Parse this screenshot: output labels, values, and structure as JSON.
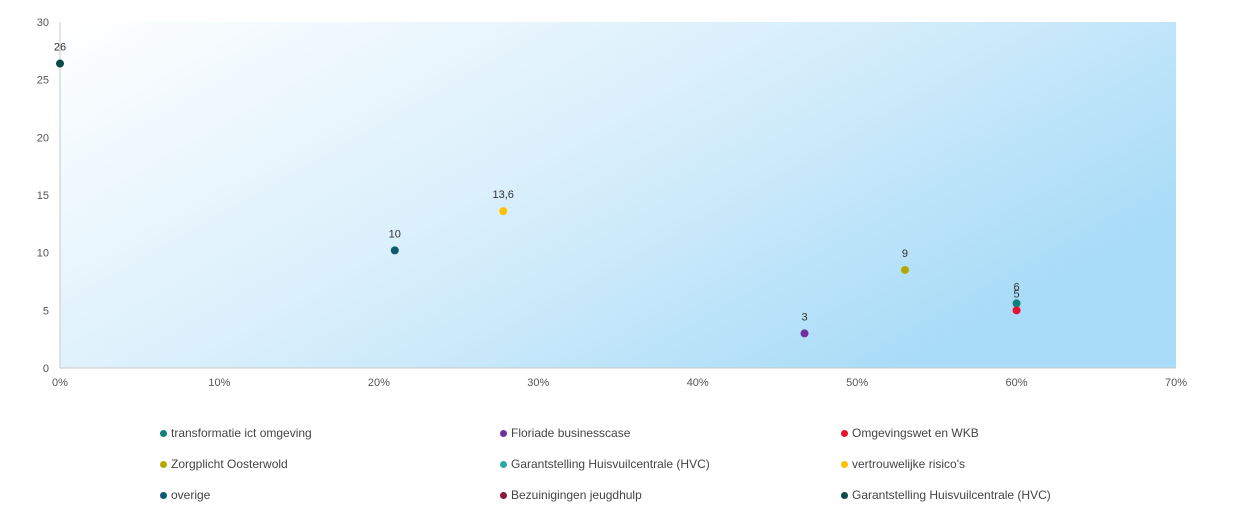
{
  "chart_data": {
    "type": "scatter",
    "title": "",
    "xlabel": "",
    "ylabel": "",
    "xlim": [
      0,
      0.7
    ],
    "ylim": [
      0,
      30
    ],
    "x_ticks": [
      "0%",
      "10%",
      "20%",
      "30%",
      "40%",
      "50%",
      "60%",
      "70%"
    ],
    "y_ticks": [
      "0",
      "5",
      "10",
      "15",
      "20",
      "25",
      "30"
    ],
    "grid": false,
    "background": "gradient white to light blue",
    "legend_position": "bottom",
    "series": [
      {
        "name": "transformatie ict omgeving",
        "color": "#0e7f7a",
        "points": [
          {
            "x": 0.6,
            "y": 5.6,
            "label": "6"
          }
        ]
      },
      {
        "name": "Floriade businesscase",
        "color": "#7030a0",
        "points": [
          {
            "x": 0.467,
            "y": 3.0,
            "label": "3"
          }
        ]
      },
      {
        "name": "Omgevingswet en WKB",
        "color": "#e8112d",
        "points": [
          {
            "x": 0.6,
            "y": 5.0,
            "label": "5"
          }
        ]
      },
      {
        "name": "Zorgplicht Oosterwold",
        "color": "#b5a800",
        "points": [
          {
            "x": 0.53,
            "y": 8.5,
            "label": "9"
          }
        ]
      },
      {
        "name": "Garantstelling Huisvuilcentrale (HVC)",
        "color": "#2aa8a4",
        "points": []
      },
      {
        "name": "vertrouwelijke risico's",
        "color": "#ffc000",
        "points": [
          {
            "x": 0.278,
            "y": 13.6,
            "label": "13,6"
          }
        ]
      },
      {
        "name": "overige",
        "color": "#0b5b6e",
        "points": [
          {
            "x": 0.21,
            "y": 10.2,
            "label": "10"
          }
        ]
      },
      {
        "name": "Bezuinigingen jeugdhulp",
        "color": "#8b1a3a",
        "points": []
      },
      {
        "name": "Garantstelling Huisvuilcentrale (HVC)",
        "color": "#0a4a4a",
        "points": [
          {
            "x": 0.0,
            "y": 26.4,
            "label": "26"
          }
        ]
      }
    ]
  }
}
